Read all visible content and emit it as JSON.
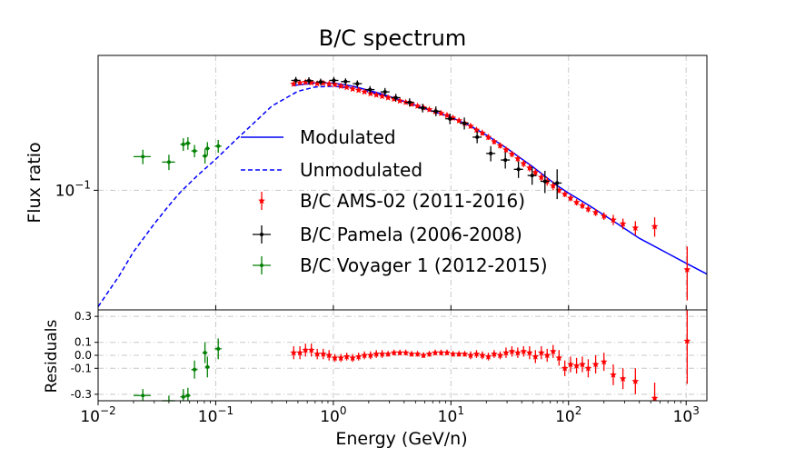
{
  "chart_data": {
    "type": "scatter",
    "title": "B/C spectrum",
    "xlabel": "Energy (GeV/n)",
    "ylabel": "Flux ratio",
    "residuals_ylabel": "Residuals",
    "xscale": "log",
    "yscale": "log",
    "xlim": [
      0.01,
      1500
    ],
    "ylim": [
      0.028,
      0.42
    ],
    "residuals_ylim": [
      -0.35,
      0.35
    ],
    "x_ticks": [
      {
        "value": 0.01,
        "base": "10",
        "exp": "−2"
      },
      {
        "value": 0.1,
        "base": "10",
        "exp": "−1"
      },
      {
        "value": 1,
        "base": "10",
        "exp": "0"
      },
      {
        "value": 10,
        "base": "10",
        "exp": "1"
      },
      {
        "value": 100,
        "base": "10",
        "exp": "2"
      },
      {
        "value": 1000,
        "base": "10",
        "exp": "3"
      }
    ],
    "y_ticks": [
      {
        "value": 0.1,
        "base": "10",
        "exp": "−1"
      }
    ],
    "residual_ticks": [
      {
        "value": 0.3,
        "label": "0.3"
      },
      {
        "value": 0.1,
        "label": "0.1"
      },
      {
        "value": 0.0,
        "label": "0.0"
      },
      {
        "value": -0.1,
        "label": "-0.1"
      },
      {
        "value": -0.3,
        "label": "-0.3"
      }
    ],
    "grid": true,
    "legend_position": "center",
    "legend": [
      {
        "label": "Modulated",
        "style": "solid-line",
        "color": "#0000ff"
      },
      {
        "label": "Unmodulated",
        "style": "dashed-line",
        "color": "#0000ff"
      },
      {
        "label": "B/C AMS-02 (2011-2016)",
        "style": "errorbar",
        "color": "#ff0000"
      },
      {
        "label": "B/C Pamela (2006-2008)",
        "style": "errorbar",
        "color": "#000000"
      },
      {
        "label": "B/C Voyager 1 (2012-2015)",
        "style": "errorbar",
        "color": "#008000"
      }
    ],
    "models": {
      "modulated": {
        "color": "#0000ff",
        "x": [
          0.45,
          0.7,
          1.0,
          1.5,
          2.5,
          4,
          7,
          10,
          15,
          20,
          30,
          50,
          80,
          100,
          150,
          250,
          400,
          700,
          1000,
          1500
        ],
        "y": [
          0.305,
          0.313,
          0.313,
          0.302,
          0.28,
          0.258,
          0.232,
          0.218,
          0.197,
          0.18,
          0.156,
          0.128,
          0.105,
          0.097,
          0.085,
          0.071,
          0.06,
          0.051,
          0.046,
          0.041
        ]
      },
      "unmodulated": {
        "color": "#0000ff",
        "x": [
          0.01,
          0.015,
          0.02,
          0.03,
          0.04,
          0.05,
          0.07,
          0.1,
          0.15,
          0.2,
          0.3,
          0.5,
          0.7,
          1.0,
          1.5,
          2.5,
          4,
          7,
          10
        ],
        "y": [
          0.029,
          0.04,
          0.052,
          0.07,
          0.085,
          0.098,
          0.117,
          0.139,
          0.172,
          0.199,
          0.245,
          0.287,
          0.3,
          0.303,
          0.296,
          0.277,
          0.257,
          0.232,
          0.218
        ]
      }
    },
    "series": [
      {
        "name": "B/C AMS-02 (2011-2016)",
        "color": "#ff0000",
        "marker": "star",
        "x": [
          0.46,
          0.52,
          0.58,
          0.65,
          0.73,
          0.82,
          0.92,
          1.03,
          1.16,
          1.3,
          1.46,
          1.64,
          1.84,
          2.07,
          2.32,
          2.6,
          2.92,
          3.28,
          3.68,
          4.13,
          4.63,
          5.2,
          5.84,
          6.55,
          7.35,
          8.25,
          9.26,
          10.4,
          11.7,
          13.1,
          14.7,
          16.5,
          18.5,
          20.8,
          23.3,
          26.2,
          29.4,
          33.0,
          37.0,
          41.5,
          46.6,
          52.3,
          58.7,
          65.8,
          73.9,
          83,
          93,
          104,
          117,
          131,
          147,
          170,
          200,
          240,
          290,
          370,
          540,
          1020
        ],
        "y": [
          0.31,
          0.314,
          0.316,
          0.314,
          0.311,
          0.313,
          0.31,
          0.308,
          0.303,
          0.299,
          0.294,
          0.29,
          0.285,
          0.28,
          0.276,
          0.272,
          0.268,
          0.264,
          0.259,
          0.255,
          0.25,
          0.245,
          0.241,
          0.236,
          0.231,
          0.227,
          0.222,
          0.216,
          0.21,
          0.204,
          0.198,
          0.19,
          0.184,
          0.176,
          0.168,
          0.161,
          0.154,
          0.147,
          0.14,
          0.133,
          0.127,
          0.121,
          0.115,
          0.11,
          0.105,
          0.1,
          0.096,
          0.092,
          0.088,
          0.085,
          0.082,
          0.079,
          0.076,
          0.073,
          0.07,
          0.067,
          0.068,
          0.043
        ],
        "yerr": [
          0.005,
          0.005,
          0.005,
          0.005,
          0.005,
          0.005,
          0.005,
          0.005,
          0.005,
          0.005,
          0.005,
          0.005,
          0.005,
          0.005,
          0.005,
          0.005,
          0.005,
          0.005,
          0.005,
          0.005,
          0.005,
          0.005,
          0.005,
          0.005,
          0.005,
          0.005,
          0.005,
          0.005,
          0.005,
          0.005,
          0.005,
          0.005,
          0.005,
          0.005,
          0.005,
          0.005,
          0.005,
          0.005,
          0.005,
          0.005,
          0.005,
          0.005,
          0.005,
          0.005,
          0.005,
          0.003,
          0.003,
          0.003,
          0.003,
          0.003,
          0.003,
          0.003,
          0.003,
          0.004,
          0.004,
          0.005,
          0.007,
          0.012
        ],
        "residuals": [
          0.02,
          0.02,
          0.04,
          0.04,
          0.01,
          0.01,
          0.0,
          -0.02,
          -0.02,
          -0.01,
          -0.02,
          -0.01,
          0.0,
          0.0,
          0.01,
          0.01,
          0.01,
          0.02,
          0.02,
          0.02,
          0.01,
          0.01,
          0.0,
          0.01,
          0.02,
          0.02,
          0.02,
          0.01,
          0.01,
          0.01,
          0.0,
          0.01,
          0.0,
          -0.01,
          0.01,
          0.0,
          0.02,
          0.03,
          0.02,
          0.03,
          0.02,
          -0.01,
          0.02,
          0.0,
          0.03,
          -0.02,
          -0.1,
          -0.07,
          -0.08,
          -0.07,
          -0.1,
          -0.07,
          -0.05,
          -0.15,
          -0.18,
          -0.2,
          -0.33,
          0.11
        ],
        "res_err": [
          0.05,
          0.05,
          0.05,
          0.05,
          0.04,
          0.04,
          0.04,
          0.03,
          0.03,
          0.03,
          0.03,
          0.03,
          0.03,
          0.03,
          0.03,
          0.03,
          0.02,
          0.02,
          0.02,
          0.02,
          0.02,
          0.02,
          0.02,
          0.02,
          0.02,
          0.02,
          0.02,
          0.02,
          0.02,
          0.02,
          0.03,
          0.03,
          0.03,
          0.03,
          0.03,
          0.03,
          0.04,
          0.04,
          0.04,
          0.04,
          0.05,
          0.05,
          0.05,
          0.05,
          0.05,
          0.06,
          0.06,
          0.06,
          0.06,
          0.06,
          0.07,
          0.07,
          0.07,
          0.08,
          0.08,
          0.1,
          0.12,
          0.33
        ]
      },
      {
        "name": "B/C Pamela (2006-2008)",
        "color": "#000000",
        "marker": "dot",
        "x": [
          0.48,
          0.62,
          0.78,
          1.01,
          1.27,
          1.6,
          2.05,
          2.75,
          3.4,
          4.45,
          5.75,
          7.45,
          9.8,
          13,
          16.7,
          21.8,
          29,
          37.5,
          49,
          63,
          80
        ],
        "y": [
          0.322,
          0.321,
          0.317,
          0.322,
          0.318,
          0.311,
          0.292,
          0.285,
          0.268,
          0.255,
          0.24,
          0.232,
          0.214,
          0.204,
          0.176,
          0.148,
          0.138,
          0.125,
          0.117,
          0.11,
          0.108
        ],
        "yerr": [
          0.012,
          0.012,
          0.011,
          0.012,
          0.011,
          0.011,
          0.011,
          0.012,
          0.011,
          0.011,
          0.011,
          0.012,
          0.012,
          0.013,
          0.011,
          0.012,
          0.012,
          0.011,
          0.011,
          0.013,
          0.017
        ]
      },
      {
        "name": "B/C Voyager 1 (2012-2015)",
        "color": "#008000",
        "marker": "dot",
        "x": [
          0.024,
          0.04,
          0.053,
          0.058,
          0.066,
          0.081,
          0.085,
          0.105
        ],
        "xerr_lo": [
          0.004,
          0.005,
          0.003,
          0.003,
          0.004,
          0.004,
          0.004,
          0.007
        ],
        "xerr_hi": [
          0.004,
          0.005,
          0.003,
          0.003,
          0.004,
          0.004,
          0.004,
          0.007
        ],
        "y": [
          0.143,
          0.135,
          0.163,
          0.165,
          0.152,
          0.144,
          0.156,
          0.16
        ],
        "yerr": [
          0.011,
          0.011,
          0.011,
          0.011,
          0.01,
          0.011,
          0.011,
          0.011
        ],
        "residuals": [
          -0.31,
          -0.36,
          -0.32,
          -0.31,
          -0.11,
          0.02,
          -0.09,
          0.05
        ],
        "res_err": [
          0.05,
          0.05,
          0.06,
          0.06,
          0.07,
          0.08,
          0.08,
          0.08
        ]
      }
    ]
  }
}
